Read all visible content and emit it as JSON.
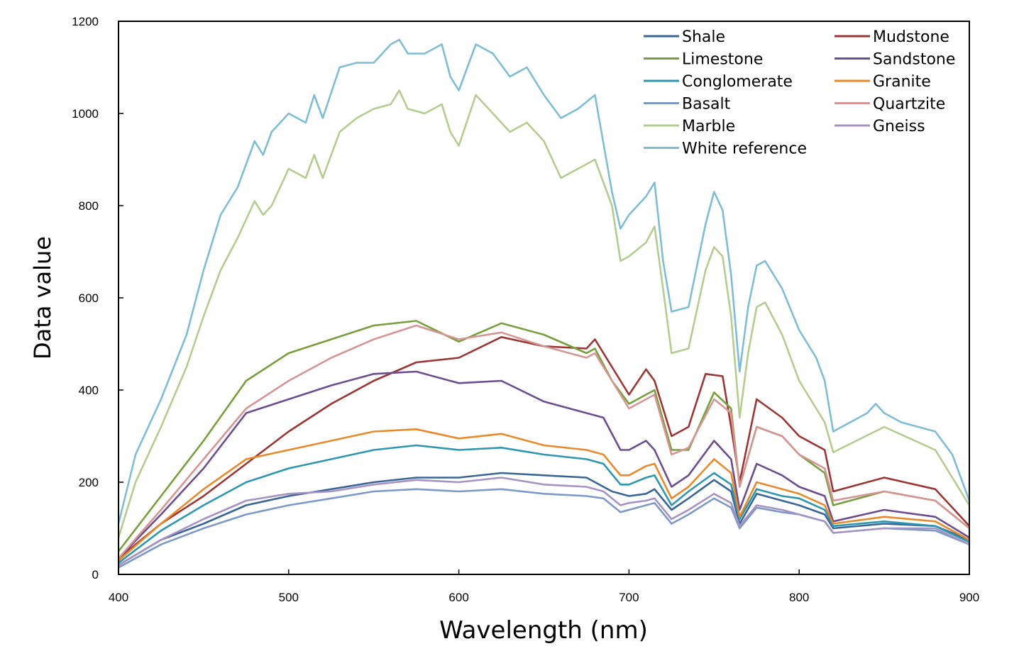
{
  "chart_data": {
    "type": "line",
    "title": "",
    "xlabel": "Wavelength (nm)",
    "ylabel": "Data value",
    "xlim": [
      400,
      900
    ],
    "ylim": [
      0,
      1200
    ],
    "xticks": [
      "400",
      "500",
      "600",
      "700",
      "800",
      "900"
    ],
    "yticks": [
      "0",
      "200",
      "400",
      "600",
      "800",
      "1000",
      "1200"
    ],
    "grid": false,
    "legend_position": "top-right",
    "series": [
      {
        "name": "Shale",
        "color": "#3a6597",
        "x": [
          400,
          425,
          450,
          475,
          500,
          525,
          550,
          575,
          600,
          625,
          650,
          675,
          690,
          700,
          710,
          715,
          725,
          735,
          750,
          760,
          765,
          775,
          790,
          800,
          815,
          820,
          850,
          880,
          900
        ],
        "y": [
          20,
          75,
          110,
          150,
          170,
          185,
          200,
          210,
          210,
          220,
          215,
          210,
          180,
          170,
          175,
          185,
          140,
          165,
          205,
          180,
          110,
          175,
          160,
          150,
          130,
          100,
          110,
          105,
          75
        ]
      },
      {
        "name": "Mudstone",
        "color": "#9b3634",
        "x": [
          400,
          425,
          450,
          475,
          500,
          525,
          550,
          575,
          600,
          625,
          650,
          675,
          680,
          690,
          700,
          710,
          715,
          725,
          735,
          745,
          755,
          760,
          765,
          775,
          790,
          800,
          815,
          820,
          850,
          880,
          900
        ],
        "y": [
          35,
          110,
          170,
          240,
          310,
          370,
          420,
          460,
          470,
          515,
          495,
          490,
          510,
          450,
          390,
          445,
          420,
          300,
          320,
          435,
          430,
          320,
          200,
          380,
          340,
          300,
          270,
          180,
          210,
          185,
          105
        ]
      },
      {
        "name": "Limestone",
        "color": "#77a03c",
        "x": [
          400,
          425,
          450,
          475,
          500,
          525,
          550,
          575,
          600,
          625,
          650,
          675,
          680,
          690,
          700,
          710,
          715,
          725,
          735,
          750,
          760,
          765,
          775,
          790,
          800,
          815,
          820,
          850,
          880,
          900
        ],
        "y": [
          50,
          170,
          290,
          420,
          480,
          510,
          540,
          550,
          505,
          545,
          520,
          480,
          490,
          420,
          370,
          390,
          400,
          270,
          270,
          395,
          360,
          190,
          320,
          300,
          260,
          220,
          150,
          180,
          160,
          100
        ]
      },
      {
        "name": "Sandstone",
        "color": "#6b4d90",
        "x": [
          400,
          425,
          450,
          475,
          500,
          525,
          550,
          575,
          600,
          625,
          650,
          675,
          685,
          695,
          700,
          710,
          715,
          725,
          735,
          750,
          760,
          765,
          775,
          790,
          800,
          815,
          820,
          850,
          880,
          900
        ],
        "y": [
          35,
          130,
          230,
          350,
          380,
          410,
          435,
          440,
          415,
          420,
          375,
          350,
          340,
          270,
          270,
          290,
          270,
          190,
          215,
          290,
          250,
          140,
          240,
          215,
          190,
          170,
          115,
          140,
          125,
          80
        ]
      },
      {
        "name": "Conglomerate",
        "color": "#2e97b0",
        "x": [
          400,
          425,
          450,
          475,
          500,
          525,
          550,
          575,
          600,
          625,
          650,
          675,
          685,
          695,
          700,
          710,
          715,
          725,
          735,
          750,
          760,
          765,
          775,
          790,
          800,
          815,
          820,
          850,
          880,
          900
        ],
        "y": [
          25,
          95,
          150,
          200,
          230,
          250,
          270,
          280,
          270,
          275,
          260,
          250,
          240,
          195,
          195,
          210,
          215,
          150,
          180,
          220,
          195,
          120,
          185,
          170,
          165,
          140,
          105,
          115,
          105,
          70
        ]
      },
      {
        "name": "Granite",
        "color": "#e88a2c",
        "x": [
          400,
          425,
          450,
          475,
          500,
          525,
          550,
          575,
          600,
          625,
          650,
          675,
          685,
          695,
          700,
          710,
          715,
          725,
          735,
          750,
          760,
          765,
          775,
          790,
          800,
          815,
          820,
          850,
          880,
          900
        ],
        "y": [
          30,
          110,
          185,
          250,
          270,
          290,
          310,
          315,
          295,
          305,
          280,
          270,
          260,
          215,
          215,
          235,
          240,
          165,
          190,
          250,
          220,
          125,
          200,
          185,
          175,
          150,
          110,
          125,
          115,
          75
        ]
      },
      {
        "name": "Basalt",
        "color": "#7c99c7",
        "x": [
          400,
          425,
          450,
          475,
          500,
          525,
          550,
          575,
          600,
          625,
          650,
          675,
          685,
          695,
          700,
          710,
          715,
          725,
          735,
          750,
          760,
          765,
          775,
          790,
          800,
          815,
          820,
          850,
          880,
          900
        ],
        "y": [
          15,
          65,
          100,
          130,
          150,
          165,
          180,
          185,
          180,
          185,
          175,
          170,
          165,
          135,
          140,
          150,
          155,
          110,
          130,
          165,
          145,
          100,
          145,
          135,
          130,
          115,
          90,
          100,
          95,
          65
        ]
      },
      {
        "name": "Quartzite",
        "color": "#d69595",
        "x": [
          400,
          425,
          450,
          475,
          500,
          525,
          550,
          575,
          600,
          625,
          650,
          675,
          680,
          690,
          700,
          710,
          715,
          725,
          735,
          750,
          760,
          765,
          775,
          790,
          800,
          815,
          820,
          850,
          880,
          900
        ],
        "y": [
          35,
          140,
          250,
          360,
          420,
          470,
          510,
          540,
          510,
          525,
          495,
          470,
          480,
          420,
          360,
          380,
          390,
          260,
          275,
          380,
          350,
          190,
          320,
          300,
          260,
          230,
          160,
          180,
          160,
          100
        ]
      },
      {
        "name": "Marble",
        "color": "#b3cc8f",
        "x": [
          400,
          410,
          425,
          440,
          450,
          460,
          470,
          480,
          485,
          490,
          495,
          500,
          510,
          515,
          520,
          530,
          540,
          550,
          560,
          565,
          570,
          580,
          590,
          595,
          600,
          610,
          620,
          630,
          640,
          650,
          660,
          670,
          680,
          690,
          695,
          700,
          710,
          715,
          720,
          725,
          735,
          745,
          750,
          755,
          760,
          765,
          770,
          775,
          780,
          790,
          800,
          810,
          815,
          820,
          850,
          880,
          900
        ],
        "y": [
          80,
          200,
          320,
          450,
          560,
          660,
          730,
          810,
          780,
          800,
          840,
          880,
          860,
          910,
          860,
          960,
          990,
          1010,
          1020,
          1050,
          1010,
          1000,
          1020,
          960,
          930,
          1040,
          1000,
          960,
          980,
          940,
          860,
          880,
          900,
          800,
          680,
          690,
          720,
          755,
          620,
          480,
          490,
          660,
          710,
          690,
          560,
          340,
          480,
          580,
          590,
          520,
          420,
          360,
          330,
          265,
          320,
          270,
          150
        ]
      },
      {
        "name": "Gneiss",
        "color": "#a493c3",
        "x": [
          400,
          425,
          450,
          475,
          500,
          525,
          550,
          575,
          600,
          625,
          650,
          675,
          685,
          695,
          700,
          710,
          715,
          725,
          735,
          750,
          760,
          765,
          775,
          790,
          800,
          815,
          820,
          850,
          880,
          900
        ],
        "y": [
          20,
          75,
          120,
          160,
          175,
          180,
          195,
          205,
          200,
          210,
          195,
          190,
          180,
          150,
          155,
          160,
          165,
          120,
          140,
          175,
          155,
          105,
          150,
          140,
          130,
          115,
          90,
          100,
          100,
          65
        ]
      },
      {
        "name": "White reference",
        "color": "#7ebdd4",
        "x": [
          400,
          410,
          425,
          440,
          450,
          460,
          470,
          480,
          485,
          490,
          495,
          500,
          510,
          515,
          520,
          530,
          540,
          550,
          560,
          565,
          570,
          580,
          590,
          595,
          600,
          610,
          620,
          630,
          640,
          650,
          660,
          670,
          680,
          690,
          695,
          700,
          710,
          715,
          720,
          725,
          735,
          745,
          750,
          755,
          760,
          765,
          770,
          775,
          780,
          790,
          800,
          810,
          815,
          820,
          830,
          840,
          845,
          850,
          860,
          870,
          880,
          890,
          900
        ],
        "y": [
          110,
          260,
          380,
          520,
          660,
          780,
          840,
          940,
          910,
          960,
          980,
          1000,
          980,
          1040,
          990,
          1100,
          1110,
          1110,
          1150,
          1160,
          1130,
          1130,
          1150,
          1080,
          1050,
          1150,
          1130,
          1080,
          1100,
          1040,
          990,
          1010,
          1040,
          830,
          750,
          780,
          820,
          850,
          680,
          570,
          580,
          760,
          830,
          790,
          650,
          440,
          580,
          670,
          680,
          620,
          530,
          470,
          420,
          310,
          330,
          350,
          370,
          350,
          330,
          320,
          310,
          260,
          160
        ]
      }
    ]
  }
}
